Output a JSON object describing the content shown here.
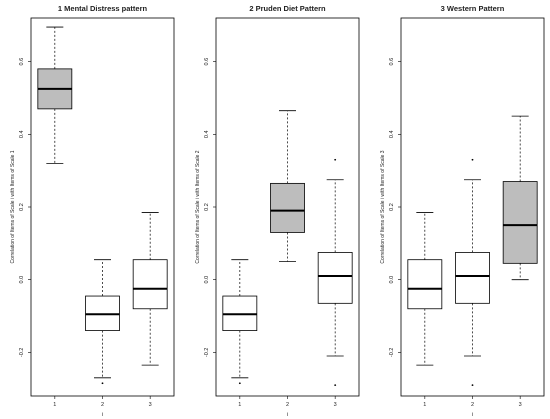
{
  "chart_data": [
    {
      "type": "boxplot",
      "title": "1 Mental Distress pattern",
      "ylabel": "Correlation of Items of Scale i with Items of Scale 1",
      "xlabel": "i",
      "categories": [
        "1",
        "2",
        "3"
      ],
      "ylim": [
        -0.32,
        0.72
      ],
      "yticks": [
        "-0.2",
        "0.0",
        "0.2",
        "0.4",
        "0.6"
      ],
      "boxes": [
        {
          "category": "1",
          "whisker_low": 0.32,
          "q1": 0.47,
          "median": 0.525,
          "q3": 0.58,
          "whisker_high": 0.695,
          "outliers": [],
          "highlight": true
        },
        {
          "category": "2",
          "whisker_low": -0.27,
          "q1": -0.14,
          "median": -0.095,
          "q3": -0.045,
          "whisker_high": 0.055,
          "outliers": [
            -0.285
          ],
          "highlight": false
        },
        {
          "category": "3",
          "whisker_low": -0.235,
          "q1": -0.08,
          "median": -0.025,
          "q3": 0.055,
          "whisker_high": 0.185,
          "outliers": [],
          "highlight": false
        }
      ]
    },
    {
      "type": "boxplot",
      "title": "2 Pruden Diet Pattern",
      "ylabel": "Correlation of Items of Scale i with Items of Scale 2",
      "xlabel": "i",
      "categories": [
        "1",
        "2",
        "3"
      ],
      "ylim": [
        -0.32,
        0.72
      ],
      "yticks": [
        "-0.2",
        "0.0",
        "0.2",
        "0.4",
        "0.6"
      ],
      "boxes": [
        {
          "category": "1",
          "whisker_low": -0.27,
          "q1": -0.14,
          "median": -0.095,
          "q3": -0.045,
          "whisker_high": 0.055,
          "outliers": [
            -0.285
          ],
          "highlight": false
        },
        {
          "category": "2",
          "whisker_low": 0.05,
          "q1": 0.13,
          "median": 0.19,
          "q3": 0.265,
          "whisker_high": 0.465,
          "outliers": [],
          "highlight": true
        },
        {
          "category": "3",
          "whisker_low": -0.21,
          "q1": -0.065,
          "median": 0.01,
          "q3": 0.075,
          "whisker_high": 0.275,
          "outliers": [
            0.33,
            -0.29
          ],
          "highlight": false
        }
      ]
    },
    {
      "type": "boxplot",
      "title": "3 Western Pattern",
      "ylabel": "Correlation of Items of Scale i with Items of Scale 3",
      "xlabel": "i",
      "categories": [
        "1",
        "2",
        "3"
      ],
      "ylim": [
        -0.32,
        0.72
      ],
      "yticks": [
        "-0.2",
        "0.0",
        "0.2",
        "0.4",
        "0.6"
      ],
      "boxes": [
        {
          "category": "1",
          "whisker_low": -0.235,
          "q1": -0.08,
          "median": -0.025,
          "q3": 0.055,
          "whisker_high": 0.185,
          "outliers": [],
          "highlight": false
        },
        {
          "category": "2",
          "whisker_low": -0.21,
          "q1": -0.065,
          "median": 0.01,
          "q3": 0.075,
          "whisker_high": 0.275,
          "outliers": [
            0.33,
            -0.29
          ],
          "highlight": false
        },
        {
          "category": "3",
          "whisker_low": 0.0,
          "q1": 0.045,
          "median": 0.15,
          "q3": 0.27,
          "whisker_high": 0.45,
          "outliers": [],
          "highlight": true
        }
      ]
    }
  ],
  "colors": {
    "highlight_fill": "#bdbdbd",
    "box_fill": "#ffffff",
    "stroke": "#000000",
    "text": "#222222"
  }
}
